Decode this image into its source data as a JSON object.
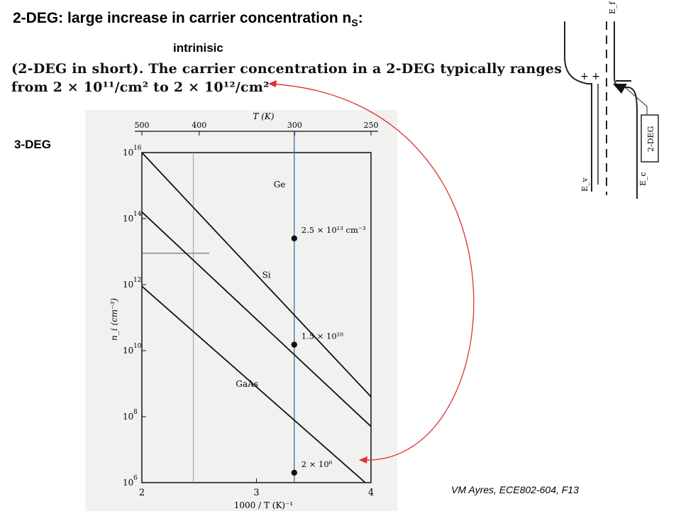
{
  "slide": {
    "title_main": "2-DEG: large increase in carrier concentration n",
    "title_sub": "S",
    "title_colon": ":",
    "label_intrinsic": "intrinisic",
    "label_3deg": "3-DEG",
    "quote_line1": "(2-DEG in short). The carrier concentration in a 2-DEG typically ranges",
    "quote_line2": "from 2 × 10¹¹/cm² to 2 × 10¹²/cm²",
    "footer": "VM Ayres, ECE802-604, F13"
  },
  "band_diagram": {
    "label_ef": "E_f",
    "label_ev": "E_v",
    "label_ec": "E_c",
    "box_label": "2-DEG",
    "charges": "+ +"
  },
  "colors": {
    "arrow": "#e03030",
    "marker_line": "#3a6fb0"
  },
  "chart_data": {
    "type": "line",
    "title": "",
    "xlabel": "1000 / T (K)⁻¹",
    "ylabel": "n_i (cm⁻³)",
    "top_axis_label": "T (K)",
    "xlim": [
      2,
      4
    ],
    "ylim_log10": [
      6,
      16
    ],
    "x_ticks": [
      2,
      3,
      4
    ],
    "y_ticks": [
      {
        "exp": 6,
        "label": "10"
      },
      {
        "exp": 8,
        "label": "10"
      },
      {
        "exp": 10,
        "label": "10"
      },
      {
        "exp": 12,
        "label": "10"
      },
      {
        "exp": 14,
        "label": "10"
      },
      {
        "exp": 16,
        "label": "10"
      }
    ],
    "top_ticks": [
      {
        "T": 500,
        "label": "500"
      },
      {
        "T": 400,
        "label": "400"
      },
      {
        "T": 300,
        "label": "300"
      },
      {
        "T": 250,
        "label": "250"
      }
    ],
    "series": [
      {
        "name": "Ge",
        "x": [
          2.0,
          4.0
        ],
        "log10_y": [
          16.0,
          8.6
        ]
      },
      {
        "name": "Si",
        "x": [
          2.0,
          4.0
        ],
        "log10_y": [
          14.2,
          7.7
        ]
      },
      {
        "name": "GaAs",
        "x": [
          2.0,
          3.95
        ],
        "log10_y": [
          11.95,
          5.8
        ]
      }
    ],
    "markers": [
      {
        "x": 3.33,
        "log10_y": 13.4,
        "label": "2.5 × 10¹³ cm⁻³"
      },
      {
        "x": 3.33,
        "log10_y": 10.18,
        "label": "1.5 × 10¹⁰"
      },
      {
        "x": 3.33,
        "log10_y": 6.3,
        "label": "2 × 10⁶"
      }
    ]
  }
}
